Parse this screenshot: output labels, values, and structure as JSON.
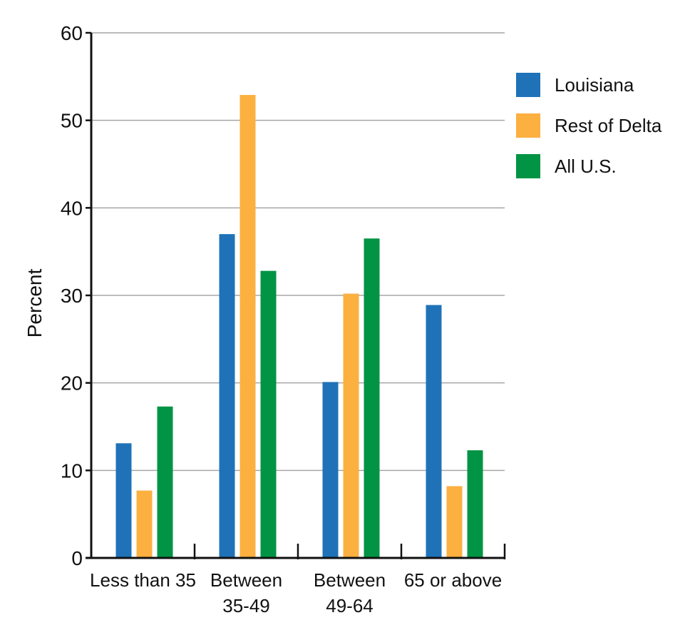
{
  "chart_data": {
    "type": "bar",
    "title": "",
    "xlabel": "",
    "ylabel": "Percent",
    "ylim": [
      0,
      60
    ],
    "yticks": [
      0,
      10,
      20,
      30,
      40,
      50,
      60
    ],
    "grid": true,
    "legend_position": "right",
    "categories": [
      [
        "Less than 35"
      ],
      [
        "Between",
        "35-49"
      ],
      [
        "Between",
        "49-64"
      ],
      [
        "65 or above"
      ]
    ],
    "series": [
      {
        "name": "Louisiana",
        "color": "#1f72b8",
        "values": [
          13.1,
          37.0,
          20.1,
          28.9
        ]
      },
      {
        "name": "Rest of Delta",
        "color": "#fbb040",
        "values": [
          7.7,
          52.9,
          30.2,
          8.2
        ]
      },
      {
        "name": "All U.S.",
        "color": "#009444",
        "values": [
          17.3,
          32.8,
          36.5,
          12.3
        ]
      }
    ]
  }
}
